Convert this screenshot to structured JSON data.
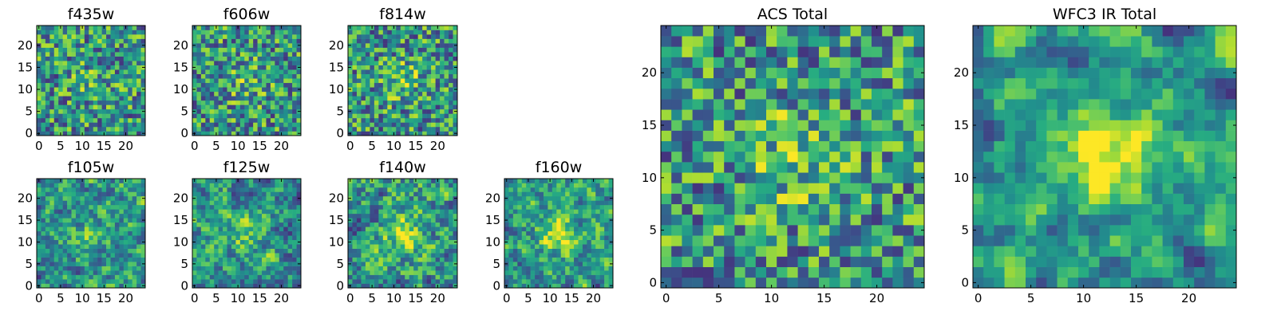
{
  "chart_data": [
    {
      "type": "heatmap",
      "title": "f435w",
      "grid_size": 25,
      "colormap": "viridis",
      "xticks": [
        0,
        5,
        10,
        15,
        20
      ],
      "yticks": [
        0,
        5,
        10,
        15,
        20
      ],
      "xlim": [
        0,
        24
      ],
      "ylim": [
        0,
        24
      ],
      "seed": 11,
      "noise_scale": 1,
      "center_boost": 0.1
    },
    {
      "type": "heatmap",
      "title": "f606w",
      "grid_size": 25,
      "colormap": "viridis",
      "xticks": [
        0,
        5,
        10,
        15,
        20
      ],
      "yticks": [
        0,
        5,
        10,
        15,
        20
      ],
      "xlim": [
        0,
        24
      ],
      "ylim": [
        0,
        24
      ],
      "seed": 23,
      "noise_scale": 1,
      "center_boost": 0.15
    },
    {
      "type": "heatmap",
      "title": "f814w",
      "grid_size": 25,
      "colormap": "viridis",
      "xticks": [
        0,
        5,
        10,
        15,
        20
      ],
      "yticks": [
        0,
        5,
        10,
        15,
        20
      ],
      "xlim": [
        0,
        24
      ],
      "ylim": [
        0,
        24
      ],
      "seed": 37,
      "noise_scale": 1,
      "center_boost": 0.2
    },
    {
      "type": "heatmap",
      "title": "f105w",
      "grid_size": 25,
      "colormap": "viridis",
      "xticks": [
        0,
        5,
        10,
        15,
        20
      ],
      "yticks": [
        0,
        5,
        10,
        15,
        20
      ],
      "xlim": [
        0,
        24
      ],
      "ylim": [
        0,
        24
      ],
      "seed": 41,
      "noise_scale": 2,
      "center_boost": 0.2
    },
    {
      "type": "heatmap",
      "title": "f125w",
      "grid_size": 25,
      "colormap": "viridis",
      "xticks": [
        0,
        5,
        10,
        15,
        20
      ],
      "yticks": [
        0,
        5,
        10,
        15,
        20
      ],
      "xlim": [
        0,
        24
      ],
      "ylim": [
        0,
        24
      ],
      "seed": 53,
      "noise_scale": 2,
      "center_boost": 0.2
    },
    {
      "type": "heatmap",
      "title": "f140w",
      "grid_size": 25,
      "colormap": "viridis",
      "xticks": [
        0,
        5,
        10,
        15,
        20
      ],
      "yticks": [
        0,
        5,
        10,
        15,
        20
      ],
      "xlim": [
        0,
        24
      ],
      "ylim": [
        0,
        24
      ],
      "seed": 67,
      "noise_scale": 2,
      "center_boost": 0.35
    },
    {
      "type": "heatmap",
      "title": "f160w",
      "grid_size": 25,
      "colormap": "viridis",
      "xticks": [
        0,
        5,
        10,
        15,
        20
      ],
      "yticks": [
        0,
        5,
        10,
        15,
        20
      ],
      "xlim": [
        0,
        24
      ],
      "ylim": [
        0,
        24
      ],
      "seed": 79,
      "noise_scale": 2,
      "center_boost": 0.4
    },
    {
      "type": "heatmap",
      "title": "ACS Total",
      "grid_size": 25,
      "colormap": "viridis",
      "xticks": [
        0,
        5,
        10,
        15,
        20
      ],
      "yticks": [
        0,
        5,
        10,
        15,
        20
      ],
      "xlim": [
        0,
        24
      ],
      "ylim": [
        0,
        24
      ],
      "seed": 97,
      "noise_scale": 1,
      "center_boost": 0.2
    },
    {
      "type": "heatmap",
      "title": "WFC3 IR Total",
      "grid_size": 25,
      "colormap": "viridis",
      "xticks": [
        0,
        5,
        10,
        15,
        20
      ],
      "yticks": [
        0,
        5,
        10,
        15,
        20
      ],
      "xlim": [
        0,
        24
      ],
      "ylim": [
        0,
        24
      ],
      "seed": 113,
      "noise_scale": 3,
      "center_boost": 0.45
    }
  ]
}
